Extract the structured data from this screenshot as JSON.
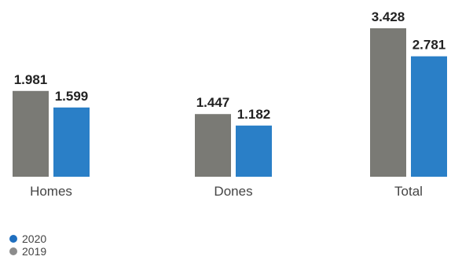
{
  "chart_data": {
    "type": "bar",
    "categories": [
      "Homes",
      "Dones",
      "Total"
    ],
    "series": [
      {
        "name": "2019",
        "values": [
          1.981,
          1.447,
          3.428
        ],
        "color": "#7a7a75"
      },
      {
        "name": "2020",
        "values": [
          1.599,
          1.182,
          2.781
        ],
        "color": "#2a7fc7"
      }
    ],
    "data_labels": [
      [
        "1.981",
        "1.447",
        "3.428"
      ],
      [
        "1.599",
        "1.182",
        "2.781"
      ]
    ],
    "ylim": [
      0,
      3.428
    ],
    "grid": false,
    "legend_placement": "bottom-left"
  },
  "legend": {
    "items": [
      {
        "label": "2020",
        "color": "#1f6fbf"
      },
      {
        "label": "2019",
        "color": "#8c8c8c"
      }
    ]
  }
}
